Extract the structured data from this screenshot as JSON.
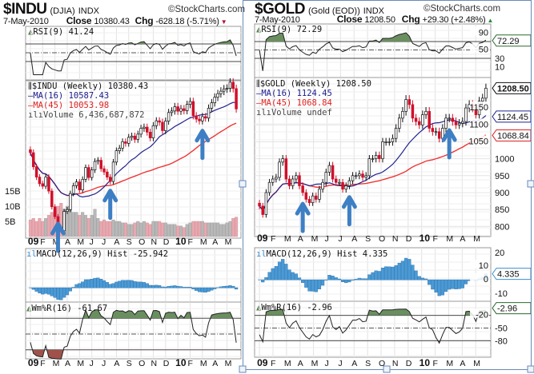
{
  "chart_data": [
    {
      "type": "candlestick",
      "symbol": "$INDU",
      "name": "(DJIA)",
      "exchange": "INDX",
      "brand": "©StockCharts.com",
      "date": "7-May-2010",
      "close_label": "Close",
      "close": "10380.43",
      "chg_label": "Chg",
      "chg": "-628.18 (-5.71%)",
      "direction": "down",
      "rsi_label": "RSI(9) 41.24",
      "price_label": "$INDU (Weekly) 10380.43",
      "ma16_label": "MA(16) 10587.43",
      "ma45_label": "MA(45) 10053.98",
      "volume_label": "Volume 6,436,687,872",
      "macd_label": "MACD(12,26,9) Hist -25.942",
      "wr_label": "Wm%R(16) -61.67",
      "volume_ticks": [
        "15B",
        "10B",
        "5B"
      ],
      "volume_tick_values": [
        15,
        10,
        5
      ],
      "months": [
        "09",
        "F",
        "M",
        "A",
        "M",
        "J",
        "J",
        "A",
        "S",
        "O",
        "N",
        "D",
        "10",
        "F",
        "M",
        "A",
        "M"
      ],
      "closes": [
        9034,
        8599,
        8281,
        8077,
        8000,
        8280,
        7850,
        7366,
        7063,
        6627,
        6626,
        7223,
        7278,
        7776,
        8017,
        8131,
        7886,
        8212,
        8575,
        8268,
        8500,
        8763,
        8799,
        8539,
        8438,
        8280,
        8146,
        8743,
        9093,
        9171,
        9370,
        9321,
        9505,
        9544,
        9441,
        9605,
        9783,
        9820,
        9665,
        9487,
        9865,
        10016,
        9972,
        9712,
        10005,
        10270,
        10318,
        10450,
        10310,
        10388,
        10328,
        10520,
        10610,
        10172,
        10067,
        10012,
        10144,
        10099,
        10403,
        10570,
        10741,
        10850,
        10927,
        10997,
        11018,
        11204,
        11008,
        10380
      ],
      "volume_billions": [
        5.5,
        6,
        5,
        6,
        5,
        6,
        7,
        8,
        9,
        10,
        11,
        9,
        10,
        9,
        8,
        8,
        7,
        8,
        7,
        6,
        7,
        9,
        6,
        5,
        5.5,
        5,
        5,
        5.5,
        5,
        5,
        4.5,
        4.5,
        4,
        4,
        4.5,
        5,
        4.5,
        5,
        4.5,
        4,
        5,
        5,
        5,
        4.5,
        4.5,
        4,
        4,
        4,
        3.5,
        3.5,
        3,
        4,
        4.5,
        5,
        5,
        5,
        5,
        4.5,
        4.5,
        4.5,
        4.5,
        4.5,
        4,
        4,
        4.5,
        5,
        6,
        6.4
      ],
      "price_range": [
        6400,
        11250
      ],
      "arrow_weeks": [
        9,
        26,
        56
      ]
    },
    {
      "type": "candlestick",
      "symbol": "$GOLD",
      "name": "(Gold (EOD))",
      "exchange": "INDX",
      "brand": "©StockCharts.com",
      "date": "7-May-2010",
      "close_label": "Close",
      "close": "1208.50",
      "chg_label": "Chg",
      "chg": "+29.30 (+2.48%)",
      "direction": "up",
      "rsi_label": "RSI(9) 72.29",
      "price_label": "$GOLD (Weekly) 1208.50",
      "ma16_label": "MA(16) 1124.45",
      "ma45_label": "MA(45) 1068.84",
      "volume_label": "Volume undef",
      "macd_label": "MACD(12,26,9) Hist 4.335",
      "wr_label": "Wm%R(16) -2.96",
      "price_ticks": [
        "1150",
        "1100",
        "1050",
        "1000",
        "950",
        "900",
        "850",
        "800"
      ],
      "price_tick_values": [
        1150,
        1100,
        1050,
        1000,
        950,
        900,
        850,
        800
      ],
      "price_tags": {
        "last": "1208.50",
        "ma16": "1124.45",
        "ma45": "1068.84"
      },
      "rsi_ticks": [
        "90",
        "50",
        "30",
        "10"
      ],
      "rsi_tick_values": [
        90,
        50,
        30,
        10
      ],
      "rsi_tag": "72.29",
      "macd_ticks": [
        "20",
        "10",
        "0",
        "-10"
      ],
      "macd_tick_values": [
        20,
        10,
        0,
        -10
      ],
      "macd_tag": "4.335",
      "wr_ticks": [
        "-20",
        "-50",
        "-80"
      ],
      "wr_tick_values": [
        -20,
        -50,
        -80
      ],
      "wr_tag": "-2.96",
      "months": [
        "09",
        "F",
        "M",
        "A",
        "M",
        "J",
        "J",
        "A",
        "S",
        "O",
        "N",
        "D",
        "10",
        "F",
        "M",
        "A",
        "M"
      ],
      "closes": [
        860,
        835,
        900,
        930,
        940,
        945,
        990,
        1000,
        940,
        920,
        940,
        950,
        920,
        900,
        880,
        870,
        890,
        880,
        910,
        930,
        960,
        980,
        940,
        930,
        930,
        910,
        920,
        935,
        950,
        950,
        955,
        945,
        950,
        1000,
        1000,
        1010,
        1000,
        1050,
        1050,
        1050,
        1060,
        1090,
        1120,
        1140,
        1175,
        1160,
        1120,
        1110,
        1100,
        1130,
        1140,
        1090,
        1080,
        1080,
        1060,
        1090,
        1120,
        1120,
        1110,
        1100,
        1105,
        1110,
        1150,
        1160,
        1150,
        1130,
        1170,
        1179,
        1208.5
      ],
      "price_range": [
        770,
        1240
      ],
      "arrow_weeks": [
        13,
        27,
        57
      ]
    }
  ]
}
